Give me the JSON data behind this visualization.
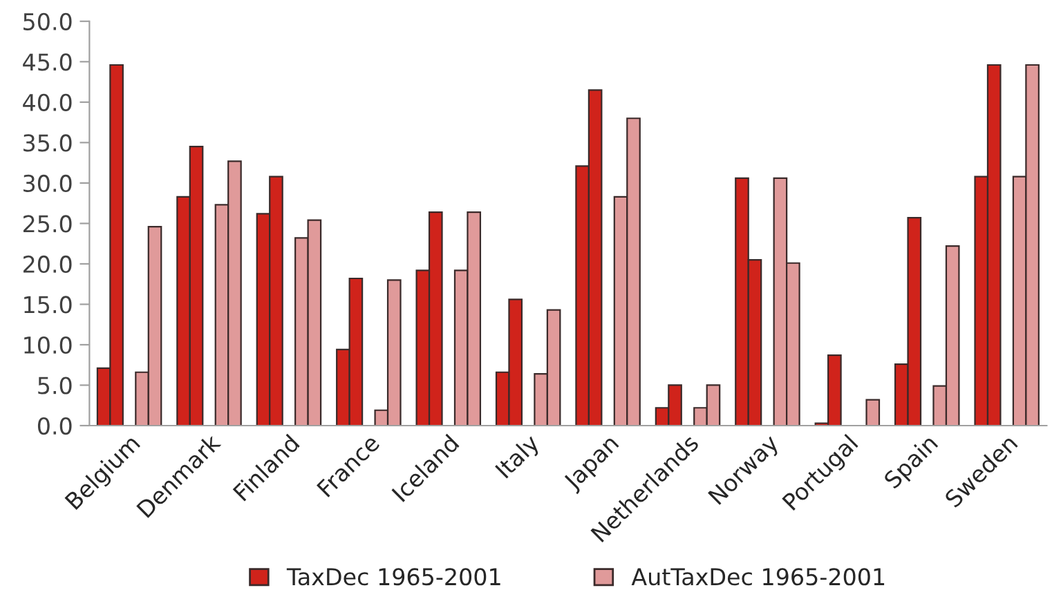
{
  "chart_data": {
    "type": "bar",
    "categories": [
      "Belgium",
      "Denmark",
      "Finland",
      "France",
      "Iceland",
      "Italy",
      "Japan",
      "Netherlands",
      "Norway",
      "Portugal",
      "Spain",
      "Sweden"
    ],
    "series": [
      {
        "name": "TaxDec 1965-2001",
        "color": "#d0231b",
        "values": [
          7.1,
          28.3,
          26.2,
          9.4,
          19.2,
          6.6,
          32.1,
          2.2,
          30.6,
          0.3,
          7.6,
          30.8
        ]
      },
      {
        "color": "#d0231b",
        "values": [
          44.6,
          34.5,
          30.8,
          18.2,
          26.4,
          15.6,
          41.5,
          5.0,
          20.5,
          8.7,
          25.7,
          44.6
        ]
      },
      {
        "name": "AutTaxDec 1965-2001",
        "color": "#e09a9a",
        "values": [
          6.6,
          27.3,
          23.2,
          1.9,
          19.2,
          6.4,
          28.3,
          2.2,
          30.6,
          null,
          4.9,
          30.8
        ]
      },
      {
        "color": "#e09a9a",
        "values": [
          24.6,
          32.7,
          25.4,
          18.0,
          26.4,
          14.3,
          38.0,
          5.0,
          20.1,
          3.2,
          22.2,
          44.6
        ]
      }
    ],
    "ylim": [
      0,
      50
    ],
    "yticks": [
      {
        "value": 0,
        "label": "0.0"
      },
      {
        "value": 5,
        "label": "5.0"
      },
      {
        "value": 10,
        "label": "10.0"
      },
      {
        "value": 15,
        "label": "15.0"
      },
      {
        "value": 20,
        "label": "20.0"
      },
      {
        "value": 25,
        "label": "25.0"
      },
      {
        "value": 30,
        "label": "30.0"
      },
      {
        "value": 35,
        "label": "35.0"
      },
      {
        "value": 40,
        "label": "40.0"
      },
      {
        "value": 45,
        "label": "45.0"
      },
      {
        "value": 50,
        "label": "50.0"
      }
    ],
    "grid": false,
    "legend": "bottom"
  }
}
